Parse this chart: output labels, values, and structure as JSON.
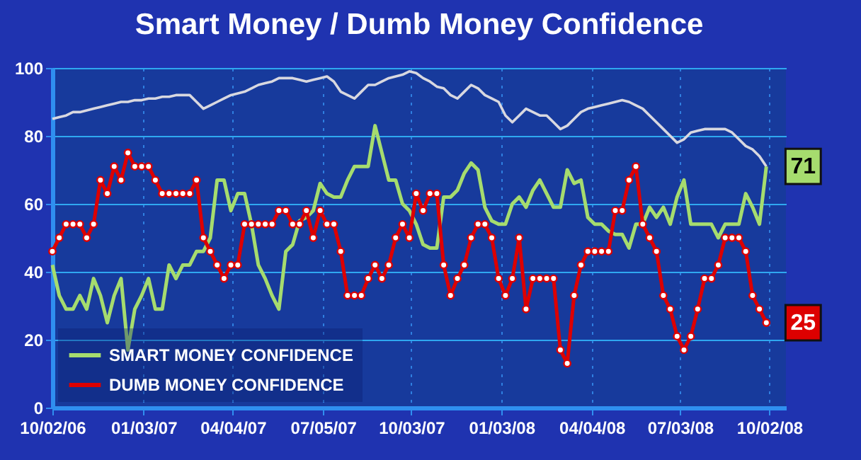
{
  "chart_data": {
    "type": "line",
    "title": "Smart Money / Dumb Money Confidence",
    "x": [
      "2006-10-02",
      "2006-10-09",
      "2006-10-16",
      "2006-10-23",
      "2006-10-30",
      "2006-11-06",
      "2006-11-13",
      "2006-11-20",
      "2006-11-27",
      "2006-12-04",
      "2006-12-11",
      "2006-12-18",
      "2006-12-25",
      "2007-01-01",
      "2007-01-08",
      "2007-01-15",
      "2007-01-22",
      "2007-01-29",
      "2007-02-05",
      "2007-02-12",
      "2007-02-19",
      "2007-02-26",
      "2007-03-05",
      "2007-03-12",
      "2007-03-19",
      "2007-03-26",
      "2007-04-02",
      "2007-04-09",
      "2007-04-16",
      "2007-04-23",
      "2007-04-30",
      "2007-05-07",
      "2007-05-14",
      "2007-05-21",
      "2007-05-28",
      "2007-06-04",
      "2007-06-11",
      "2007-06-18",
      "2007-06-25",
      "2007-07-02",
      "2007-07-09",
      "2007-07-16",
      "2007-07-23",
      "2007-07-30",
      "2007-08-06",
      "2007-08-13",
      "2007-08-20",
      "2007-08-27",
      "2007-09-03",
      "2007-09-10",
      "2007-09-17",
      "2007-09-24",
      "2007-10-01",
      "2007-10-08",
      "2007-10-15",
      "2007-10-22",
      "2007-10-29",
      "2007-11-05",
      "2007-11-12",
      "2007-11-19",
      "2007-11-26",
      "2007-12-03",
      "2007-12-10",
      "2007-12-17",
      "2007-12-24",
      "2007-12-31",
      "2008-01-07",
      "2008-01-14",
      "2008-01-21",
      "2008-01-28",
      "2008-02-04",
      "2008-02-11",
      "2008-02-18",
      "2008-02-25",
      "2008-03-03",
      "2008-03-10",
      "2008-03-17",
      "2008-03-24",
      "2008-03-31",
      "2008-04-07",
      "2008-04-14",
      "2008-04-21",
      "2008-04-28",
      "2008-05-05",
      "2008-05-12",
      "2008-05-19",
      "2008-05-26",
      "2008-06-02",
      "2008-06-09",
      "2008-06-16",
      "2008-06-23",
      "2008-06-30",
      "2008-07-07",
      "2008-07-14",
      "2008-07-21",
      "2008-07-28",
      "2008-08-04",
      "2008-08-11",
      "2008-08-18",
      "2008-08-25",
      "2008-09-01",
      "2008-09-08",
      "2008-09-15",
      "2008-09-22",
      "2008-09-29"
    ],
    "series": [
      {
        "name": "SMART MONEY CONFIDENCE",
        "color": "#a6dc6e",
        "marker": "none",
        "values": [
          42,
          33,
          29,
          29,
          33,
          29,
          38,
          33,
          25,
          33,
          38,
          17,
          29,
          33,
          38,
          29,
          29,
          42,
          38,
          42,
          42,
          46,
          46,
          50,
          67,
          67,
          58,
          63,
          63,
          54,
          42,
          38,
          33,
          29,
          46,
          48,
          55,
          56,
          58,
          66,
          63,
          62,
          62,
          67,
          71,
          71,
          71,
          83,
          75,
          67,
          67,
          60,
          58,
          54,
          48,
          47,
          47,
          62,
          62,
          64,
          69,
          72,
          70,
          59,
          55,
          54,
          54,
          60,
          62,
          59,
          64,
          67,
          63,
          59,
          59,
          70,
          66,
          67,
          56,
          54,
          54,
          52,
          51,
          51,
          47,
          54,
          54,
          59,
          56,
          59,
          54,
          62,
          67,
          54,
          54,
          54,
          54,
          50,
          54,
          54,
          54,
          63,
          59,
          54,
          71
        ],
        "value_labels": [
          null,
          null,
          null,
          null,
          null,
          null,
          null,
          null,
          null,
          null,
          null,
          null,
          null,
          null,
          null,
          null,
          null,
          null,
          null,
          null,
          null,
          null,
          null,
          null,
          null,
          null,
          null,
          null,
          null,
          null,
          null,
          null,
          null,
          null,
          null,
          null,
          null,
          null,
          null,
          null,
          null,
          null,
          null,
          null,
          null,
          null,
          null,
          null,
          null,
          null,
          null,
          null,
          null,
          null,
          null,
          null,
          null,
          null,
          null,
          null,
          null,
          null,
          null,
          null,
          null,
          null,
          null,
          null,
          null,
          null,
          null,
          null,
          null,
          null,
          null,
          null,
          null,
          null,
          null,
          null,
          null,
          null,
          null,
          null,
          null,
          null,
          null,
          null,
          null,
          null,
          null,
          null,
          null,
          null,
          null,
          null,
          null,
          null,
          null,
          null,
          null,
          null,
          null,
          null,
          "71"
        ]
      },
      {
        "name": "DUMB MONEY CONFIDENCE",
        "color": "#dd0000",
        "marker": "circle",
        "values": [
          46,
          50,
          54,
          54,
          54,
          50,
          54,
          67,
          63,
          71,
          67,
          75,
          71,
          71,
          71,
          67,
          63,
          63,
          63,
          63,
          63,
          67,
          50,
          46,
          42,
          38,
          42,
          42,
          54,
          54,
          54,
          54,
          54,
          58,
          58,
          54,
          54,
          58,
          50,
          58,
          54,
          54,
          46,
          33,
          33,
          33,
          38,
          42,
          38,
          42,
          50,
          54,
          50,
          63,
          58,
          63,
          63,
          42,
          33,
          38,
          42,
          50,
          54,
          54,
          50,
          38,
          33,
          38,
          50,
          29,
          38,
          38,
          38,
          38,
          17,
          13,
          33,
          42,
          46,
          46,
          46,
          46,
          58,
          58,
          67,
          71,
          54,
          50,
          46,
          33,
          29,
          21,
          17,
          21,
          29,
          38,
          38,
          42,
          50,
          50,
          50,
          46,
          33,
          29,
          25
        ],
        "value_labels": [
          null,
          null,
          null,
          null,
          null,
          null,
          null,
          null,
          null,
          null,
          null,
          null,
          null,
          null,
          null,
          null,
          null,
          null,
          null,
          null,
          null,
          null,
          null,
          null,
          null,
          null,
          null,
          null,
          null,
          null,
          null,
          null,
          null,
          null,
          null,
          null,
          null,
          null,
          null,
          null,
          null,
          null,
          null,
          null,
          null,
          null,
          null,
          null,
          null,
          null,
          null,
          null,
          null,
          null,
          null,
          null,
          null,
          null,
          null,
          null,
          null,
          null,
          null,
          null,
          null,
          null,
          null,
          null,
          null,
          null,
          null,
          null,
          null,
          null,
          null,
          null,
          null,
          null,
          null,
          null,
          null,
          null,
          null,
          null,
          null,
          null,
          null,
          null,
          null,
          null,
          null,
          null,
          null,
          null,
          null,
          null,
          null,
          null,
          null,
          null,
          null,
          null,
          null,
          null,
          "25"
        ]
      },
      {
        "color": "#d8d8e0",
        "marker": "none",
        "values": [
          85,
          85.5,
          86,
          87,
          87,
          87.5,
          88,
          88.5,
          89,
          89.5,
          90,
          90,
          90.5,
          90.5,
          91,
          91,
          91.5,
          91.5,
          92,
          92,
          92,
          90,
          88,
          89,
          90,
          91,
          92,
          92.5,
          93,
          94,
          95,
          95.5,
          96,
          97,
          97,
          97,
          96.5,
          96,
          96.5,
          97,
          97.5,
          96,
          93,
          92,
          91,
          93,
          95,
          95,
          96,
          97,
          97.5,
          98,
          99,
          98.5,
          97,
          96,
          94.5,
          94,
          92,
          91,
          93,
          95,
          94,
          92,
          91,
          90,
          86,
          84,
          86,
          88,
          87,
          86,
          86,
          84,
          82,
          83,
          85,
          87,
          88,
          88.5,
          89,
          89.5,
          90,
          90.5,
          90,
          89,
          88,
          86,
          84,
          82,
          80,
          78,
          79,
          81,
          81.5,
          82,
          82,
          82,
          82,
          81,
          79,
          77,
          76,
          74,
          71
        ]
      }
    ],
    "xlim": [
      "2006-10-02",
      "2008-10-19"
    ],
    "xticks": [
      {
        "value": "2006-10-02",
        "label": "10/02/06"
      },
      {
        "value": "2007-01-03",
        "label": "01/03/07"
      },
      {
        "value": "2007-04-04",
        "label": "04/04/07"
      },
      {
        "value": "2007-07-05",
        "label": "07/05/07"
      },
      {
        "value": "2007-10-03",
        "label": "10/03/07"
      },
      {
        "value": "2008-01-03",
        "label": "01/03/08"
      },
      {
        "value": "2008-04-04",
        "label": "04/04/08"
      },
      {
        "value": "2008-07-03",
        "label": "07/03/08"
      },
      {
        "value": "2008-10-02",
        "label": "10/02/08"
      }
    ],
    "ylim": [
      0,
      100
    ],
    "yticks": [
      0,
      20,
      40,
      60,
      80,
      100
    ],
    "grid": true,
    "legend": "bottom left",
    "line_style": "solid"
  }
}
